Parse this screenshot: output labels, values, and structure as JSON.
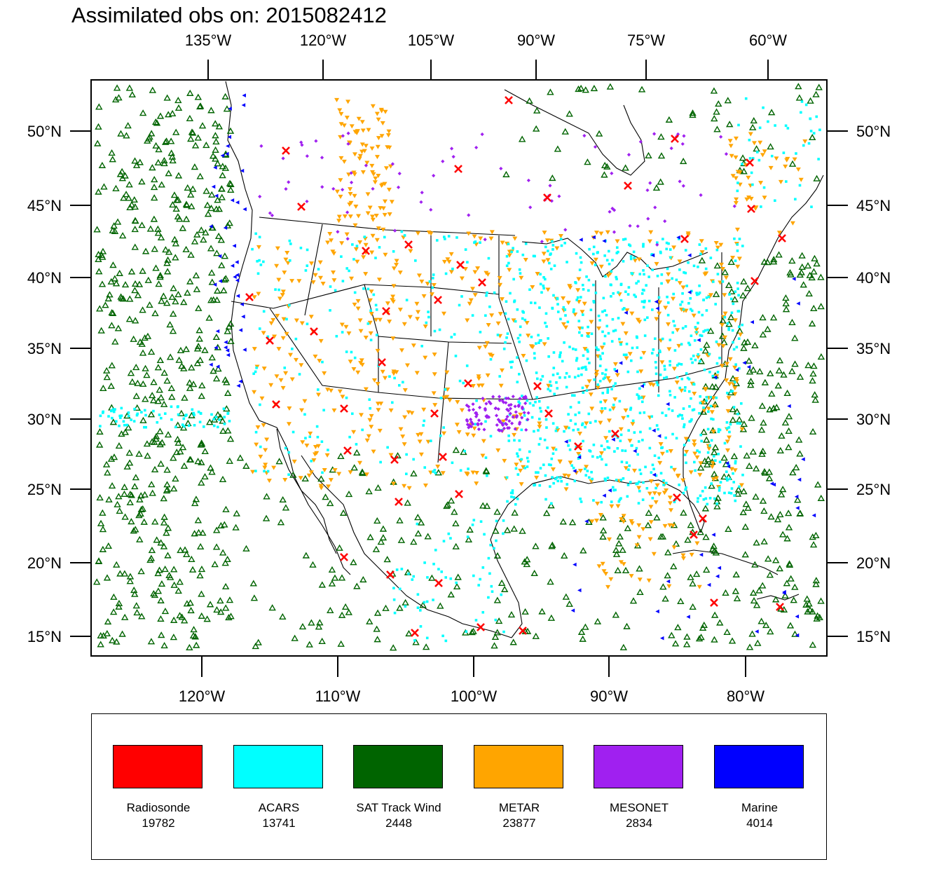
{
  "title": "Assimilated obs on: 2015082412",
  "map": {
    "top_axis_labels": [
      "135°W",
      "120°W",
      "105°W",
      "90°W",
      "75°W",
      "60°W"
    ],
    "bottom_axis_labels": [
      "120°W",
      "110°W",
      "100°W",
      "90°W",
      "80°W"
    ],
    "left_axis_labels": [
      "50°N",
      "45°N",
      "40°N",
      "35°N",
      "30°N",
      "25°N",
      "20°N",
      "15°N"
    ],
    "right_axis_labels": [
      "50°N",
      "45°N",
      "40°N",
      "35°N",
      "30°N",
      "25°N",
      "20°N",
      "15°N"
    ]
  },
  "legend": {
    "items": [
      {
        "label": "Radiosonde",
        "count": "19782",
        "color": "#ff0000",
        "symbol": "x-marker"
      },
      {
        "label": "ACARS",
        "count": "13741",
        "color": "#00ffff",
        "symbol": "square-dot"
      },
      {
        "label": "SAT Track Wind",
        "count": "2448",
        "color": "#006400",
        "symbol": "triangle-open"
      },
      {
        "label": "METAR",
        "count": "23877",
        "color": "#ffa500",
        "symbol": "triangle-down"
      },
      {
        "label": "MESONET",
        "count": "2834",
        "color": "#a020f0",
        "symbol": "diamond"
      },
      {
        "label": "Marine",
        "count": "4014",
        "color": "#0000ff",
        "symbol": "triangle-left"
      }
    ]
  }
}
